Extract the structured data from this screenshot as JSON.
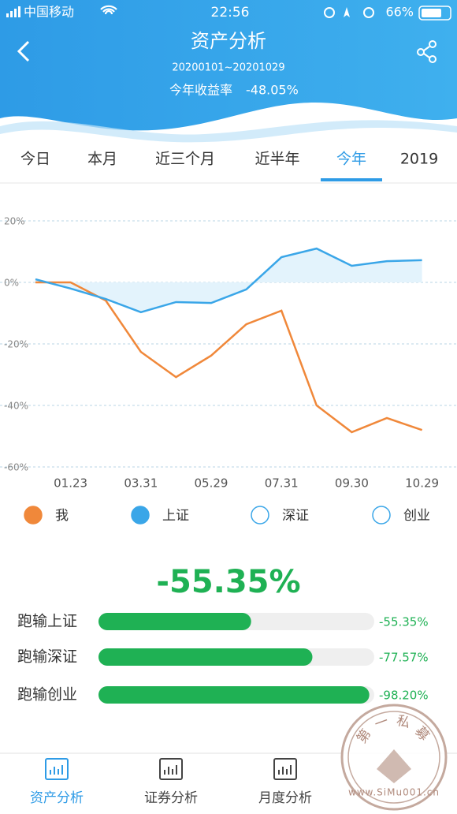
{
  "status_bar": {
    "carrier": "中国移动",
    "time": "22:56",
    "battery": "66%"
  },
  "header": {
    "title": "资产分析",
    "date_range": "20200101~20201029",
    "return_label": "今年收益率",
    "return_value": "-48.05%"
  },
  "tabs": {
    "items": [
      "今日",
      "本月",
      "近三个月",
      "近半年",
      "今年",
      "2019"
    ],
    "active": 4
  },
  "chart_data": [
    {
      "type": "line",
      "categories": [
        null,
        "01.23",
        null,
        "03.31",
        null,
        "05.29",
        null,
        "07.31",
        null,
        "09.30",
        null,
        "10.29"
      ],
      "series": [
        {
          "name": "我",
          "color": "#f0883a",
          "values": [
            0,
            0,
            -5.9,
            -22.6,
            -30.8,
            -23.8,
            -13.6,
            -9.2,
            -40,
            -48.7,
            -44.1,
            -48
          ]
        },
        {
          "name": "上证",
          "color": "#3aa6e8",
          "fill": "#e3f3fc",
          "values": [
            1,
            -2,
            -5.4,
            -9.7,
            -6.4,
            -6.7,
            -2.3,
            8.2,
            11,
            5.4,
            6.9,
            7.2
          ]
        }
      ],
      "inactive_series": [
        {
          "name": "深证",
          "color": "#3aa6e8"
        },
        {
          "name": "创业",
          "color": "#3aa6e8"
        }
      ],
      "ylim": [
        -60,
        20
      ],
      "yticks": [
        {
          "value": 20,
          "label": "20%"
        },
        {
          "value": 0,
          "label": "0%"
        },
        {
          "value": -20,
          "label": "-20%"
        },
        {
          "value": -40,
          "label": "-40%"
        },
        {
          "value": -60,
          "label": "-60%"
        }
      ],
      "grid": true
    },
    {
      "type": "hbar",
      "title": "-55.35%",
      "categories": [
        "跑输上证",
        "跑输深证",
        "跑输创业"
      ],
      "values": [
        -55.35,
        -77.57,
        -98.2
      ],
      "value_labels": [
        "-55.35%",
        "-77.57%",
        "-98.20%"
      ],
      "color": "#1fb154",
      "xlim": [
        0,
        -100
      ]
    }
  ],
  "nav": {
    "items": [
      "资产分析",
      "证券分析",
      "月度分析"
    ],
    "active": 0
  },
  "watermark": {
    "chars": [
      "第",
      "一",
      "私",
      "募"
    ],
    "url": "www.SiMu001.cn"
  }
}
